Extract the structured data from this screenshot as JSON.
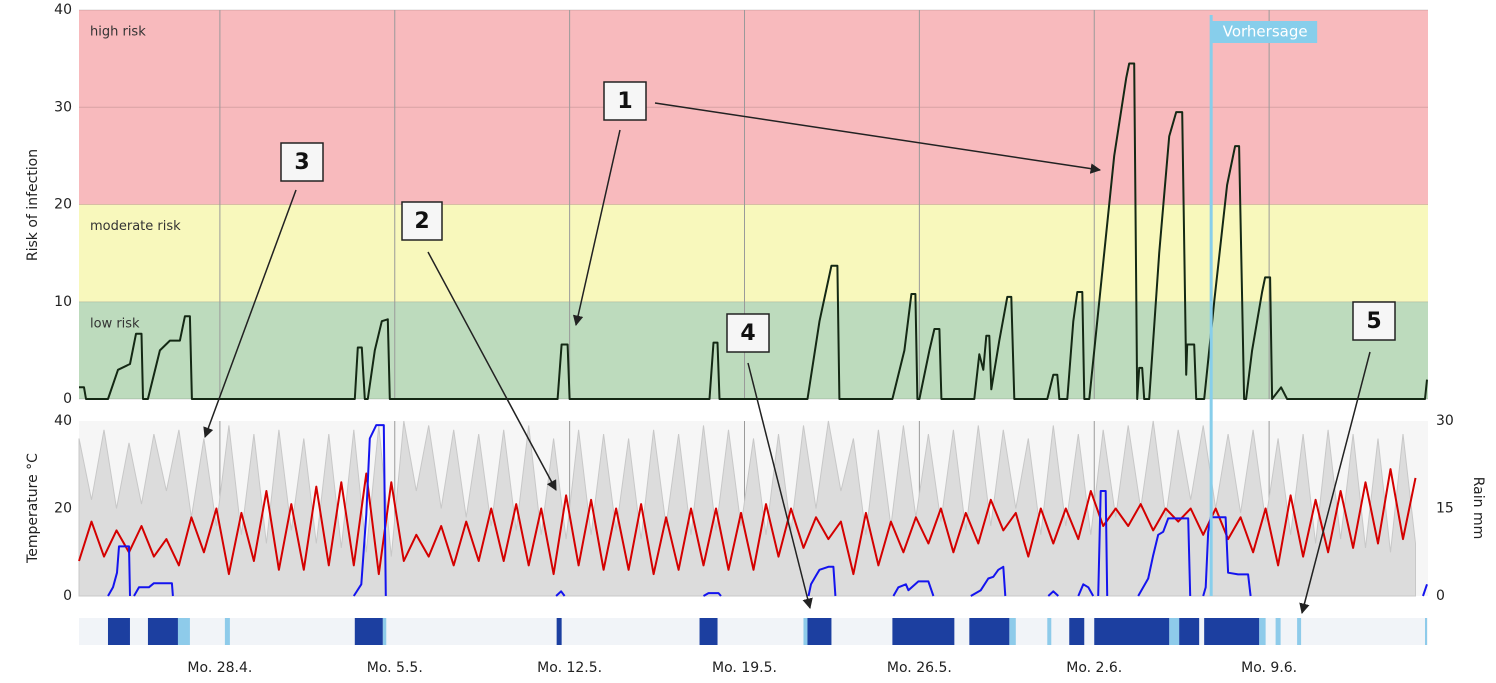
{
  "chart_data": [
    {
      "type": "line",
      "ylabel": "Risk of infection",
      "xlim": [
        0,
        54
      ],
      "xticks": [
        5.64,
        12.64,
        19.64,
        26.64,
        33.64,
        40.64,
        47.64
      ],
      "ylim": [
        0,
        40
      ],
      "yticks": [
        0,
        10,
        20,
        30,
        40
      ],
      "grid": true,
      "zones": [
        {
          "label": "low risk",
          "range": [
            0,
            10
          ],
          "color": "#bddbbd"
        },
        {
          "label": "moderate risk",
          "range": [
            10,
            20
          ],
          "color": "#f8f8bc"
        },
        {
          "label": "high risk",
          "range": [
            20,
            40
          ],
          "color": "#f8babd"
        }
      ],
      "forecast": {
        "label": "Vorhersage",
        "x": 45.32,
        "color": "#87ceeb"
      },
      "callouts": [
        "1",
        "2",
        "3",
        "4",
        "5"
      ],
      "series": [
        {
          "color": "#142814",
          "x": [
            0,
            0.2,
            0.28,
            1.16,
            1.56,
            2.04,
            2.28,
            2.5,
            2.56,
            2.76,
            3.24,
            3.64,
            4.04,
            4.24,
            4.44,
            4.52,
            11.04,
            11.16,
            11.32,
            11.44,
            11.56,
            11.84,
            12.12,
            12.36,
            12.44,
            19.16,
            19.32,
            19.56,
            19.64,
            25.24,
            25.4,
            25.56,
            25.64,
            29.16,
            29.64,
            30.12,
            30.36,
            30.44,
            32.56,
            33.04,
            33.32,
            33.48,
            33.56,
            33.64,
            34.04,
            34.24,
            34.44,
            34.52,
            35.84,
            36.04,
            36.2,
            36.32,
            36.44,
            36.52,
            36.84,
            37.16,
            37.32,
            37.44,
            38.76,
            39.0,
            39.16,
            39.24,
            39.56,
            39.8,
            39.96,
            40.16,
            40.24,
            40.44,
            41.04,
            41.44,
            41.92,
            42.04,
            42.24,
            42.36,
            42.44,
            42.56,
            42.64,
            42.84,
            43.24,
            43.64,
            43.92,
            44.16,
            44.32,
            44.36,
            44.64,
            44.72,
            45.04,
            45.44,
            45.96,
            46.28,
            46.44,
            46.64,
            46.72,
            46.96,
            47.36,
            47.48,
            47.68,
            47.76,
            48.12,
            48.36,
            53.88,
            53.96
          ],
          "values": [
            1.2,
            1.2,
            0,
            0,
            3,
            3.6,
            6.7,
            6.7,
            0,
            0,
            5,
            6,
            6,
            8.5,
            8.5,
            0,
            0,
            5.3,
            5.3,
            0,
            0,
            5,
            8,
            8.2,
            0,
            0,
            5.6,
            5.6,
            0,
            0,
            5.8,
            5.8,
            0,
            0,
            8,
            13.7,
            13.7,
            0,
            0,
            5,
            10.8,
            10.8,
            0,
            0,
            5,
            7.2,
            7.2,
            0,
            0,
            4.6,
            3,
            6.5,
            6.5,
            1,
            6,
            10.5,
            10.5,
            0,
            0,
            2.5,
            2.5,
            0,
            0,
            8,
            11,
            11,
            0,
            0,
            15,
            25,
            33,
            34.5,
            34.5,
            0,
            3.2,
            3.2,
            0,
            0,
            15,
            27,
            29.5,
            29.5,
            2.5,
            5.6,
            5.6,
            0,
            0,
            10,
            22,
            26,
            26,
            0,
            0,
            5,
            11,
            12.5,
            12.5,
            0,
            1.2,
            0,
            0,
            2
          ]
        }
      ]
    },
    {
      "type": "line",
      "ylabel": "Temperature °C",
      "y2label": "Rain mm",
      "xlim": [
        0,
        54
      ],
      "xticks": [
        {
          "value": 5.64,
          "label": "Mo. 28.4."
        },
        {
          "value": 12.64,
          "label": "Mo. 5.5."
        },
        {
          "value": 19.64,
          "label": "Mo. 12.5."
        },
        {
          "value": 26.64,
          "label": "Mo. 19.5."
        },
        {
          "value": 33.64,
          "label": "Mo. 26.5."
        },
        {
          "value": 40.64,
          "label": "Mo. 2.6."
        },
        {
          "value": 47.64,
          "label": "Mo. 9.6."
        }
      ],
      "ylim": [
        0,
        40
      ],
      "yticks": [
        0,
        20,
        40
      ],
      "y2lim": [
        0,
        30
      ],
      "y2ticks": [
        0,
        15,
        30
      ],
      "x": [
        0,
        0.5,
        1,
        1.5,
        2,
        2.5,
        3,
        3.5,
        4,
        4.5,
        5,
        5.5,
        6,
        6.5,
        7,
        7.5,
        8,
        8.5,
        9,
        9.5,
        10,
        10.5,
        11,
        11.5,
        12,
        12.5,
        13,
        13.5,
        14,
        14.5,
        15,
        15.5,
        16,
        16.5,
        17,
        17.5,
        18,
        18.5,
        19,
        19.5,
        20,
        20.5,
        21,
        21.5,
        22,
        22.5,
        23,
        23.5,
        24,
        24.5,
        25,
        25.5,
        26,
        26.5,
        27,
        27.5,
        28,
        28.5,
        29,
        29.5,
        30,
        30.5,
        31,
        31.5,
        32,
        32.5,
        33,
        33.5,
        34,
        34.5,
        35,
        35.5,
        36,
        36.5,
        37,
        37.5,
        38,
        38.5,
        39,
        39.5,
        40,
        40.5,
        41,
        41.5,
        42,
        42.5,
        43,
        43.5,
        44,
        44.5,
        45,
        45.5,
        46,
        46.5,
        47,
        47.5,
        48,
        48.5,
        49,
        49.5,
        50,
        50.5,
        51,
        51.5,
        52,
        52.5,
        53,
        53.5
      ],
      "series": [
        {
          "kind": "area",
          "color": "#dcdcdc",
          "values": [
            36,
            22,
            38,
            20,
            35,
            21,
            37,
            24,
            38,
            18,
            36,
            16,
            39,
            14,
            37,
            12,
            38,
            15,
            36,
            12,
            37,
            11,
            38,
            10,
            39,
            9,
            40,
            24,
            39,
            20,
            38,
            18,
            37,
            16,
            38,
            15,
            39,
            14,
            36,
            13,
            38,
            14,
            37,
            15,
            36,
            13,
            38,
            16,
            37,
            14,
            39,
            15,
            38,
            16,
            36,
            14,
            37,
            15,
            39,
            20,
            40,
            24,
            36,
            14,
            38,
            16,
            39,
            18,
            37,
            17,
            38,
            15,
            39,
            16,
            38,
            20,
            36,
            14,
            39,
            16,
            37,
            14,
            38,
            18,
            39,
            20,
            40,
            18,
            38,
            22,
            39,
            20,
            37,
            19,
            38,
            17,
            36,
            14,
            37,
            12,
            38,
            13,
            37,
            11,
            36,
            10,
            37,
            12
          ]
        },
        {
          "color": "#d40000",
          "values": [
            8,
            17,
            9,
            15,
            10,
            16,
            9,
            13,
            7,
            18,
            10,
            20,
            5,
            19,
            8,
            24,
            6,
            21,
            6,
            25,
            7,
            26,
            7,
            28,
            5,
            26,
            8,
            14,
            9,
            16,
            7,
            17,
            8,
            20,
            8,
            21,
            7,
            20,
            5,
            23,
            7,
            22,
            6,
            20,
            6,
            21,
            5,
            18,
            6,
            20,
            7,
            20,
            6,
            19,
            6,
            21,
            9,
            20,
            11,
            18,
            13,
            17,
            5,
            19,
            7,
            17,
            10,
            18,
            12,
            20,
            10,
            19,
            12,
            22,
            15,
            19,
            9,
            20,
            12,
            20,
            13,
            24,
            16,
            20,
            16,
            21,
            15,
            20,
            17,
            20,
            14,
            20,
            13,
            18,
            10,
            20,
            7,
            23,
            9,
            22,
            10,
            24,
            11,
            26,
            12,
            29,
            13,
            27
          ]
        },
        {
          "axis": "y2",
          "color": "#1414ee",
          "x": [
            1.16,
            1.36,
            1.52,
            1.6,
            2.0,
            2.04,
            null,
            2.2,
            2.4,
            2.8,
            3.0,
            3.72,
            3.76,
            null,
            11.0,
            11.3,
            11.4,
            11.5,
            11.64,
            11.9,
            12.2,
            12.28,
            null,
            19.1,
            19.3,
            19.44,
            null,
            25.0,
            25.2,
            25.6,
            25.7,
            null,
            29.2,
            29.3,
            29.5,
            29.64,
            30.0,
            30.2,
            30.28,
            null,
            32.6,
            32.8,
            33.1,
            33.2,
            33.6,
            34.0,
            34.2,
            null,
            35.7,
            36.1,
            36.4,
            36.6,
            36.8,
            37.0,
            37.08,
            null,
            38.8,
            39.0,
            39.2,
            null,
            40.0,
            40.2,
            40.4,
            40.6,
            null,
            40.8,
            40.9,
            41.1,
            41.16,
            null,
            42.4,
            42.8,
            43.0,
            43.2,
            43.4,
            43.6,
            44.4,
            44.48,
            null,
            45.0,
            45.1,
            45.2,
            45.3,
            45.9,
            46.0,
            46.4,
            46.8,
            46.9,
            null,
            53.8,
            53.96
          ],
          "values": [
            0,
            1.5,
            4,
            8.5,
            8.5,
            0,
            null,
            0,
            1.5,
            1.5,
            2.2,
            2.2,
            0,
            null,
            0,
            2,
            8,
            14,
            27,
            29.3,
            29.3,
            0,
            null,
            0,
            0.8,
            0,
            null,
            0,
            0.5,
            0.5,
            0,
            null,
            0,
            2,
            3.5,
            4.5,
            5,
            5,
            0,
            null,
            0,
            1.5,
            2,
            1,
            2.5,
            2.5,
            0,
            null,
            0,
            1,
            3,
            3.3,
            4.5,
            5,
            0,
            null,
            0,
            0.8,
            0,
            null,
            0,
            2,
            1.5,
            0,
            null,
            0,
            18,
            18,
            0,
            null,
            0,
            3,
            7,
            10.5,
            11,
            13.3,
            13.3,
            0,
            null,
            0,
            1.5,
            11,
            13.5,
            13.5,
            4,
            3.7,
            3.7,
            0,
            null,
            0,
            2
          ]
        }
      ],
      "wetness": [
        {
          "color": "#8ecbea",
          "spans": [
            [
              3.96,
              4.44
            ],
            [
              5.84,
              6.04
            ],
            [
              12.16,
              12.3
            ],
            [
              29.0,
              29.16
            ],
            [
              37.24,
              37.5
            ],
            [
              38.76,
              38.92
            ],
            [
              43.64,
              44.04
            ],
            [
              47.24,
              47.5
            ],
            [
              47.9,
              48.1
            ],
            [
              48.76,
              48.92
            ],
            [
              53.88,
              53.96
            ]
          ]
        },
        {
          "color": "#1c3fa0",
          "spans": [
            [
              1.16,
              2.04
            ],
            [
              2.76,
              3.96
            ],
            [
              11.04,
              12.16
            ],
            [
              19.12,
              19.32
            ],
            [
              24.84,
              25.56
            ],
            [
              29.16,
              30.12
            ],
            [
              32.56,
              35.04
            ],
            [
              35.64,
              37.24
            ],
            [
              39.64,
              40.24
            ],
            [
              40.64,
              43.64
            ],
            [
              44.04,
              44.84
            ],
            [
              45.04,
              47.24
            ]
          ]
        }
      ]
    }
  ]
}
